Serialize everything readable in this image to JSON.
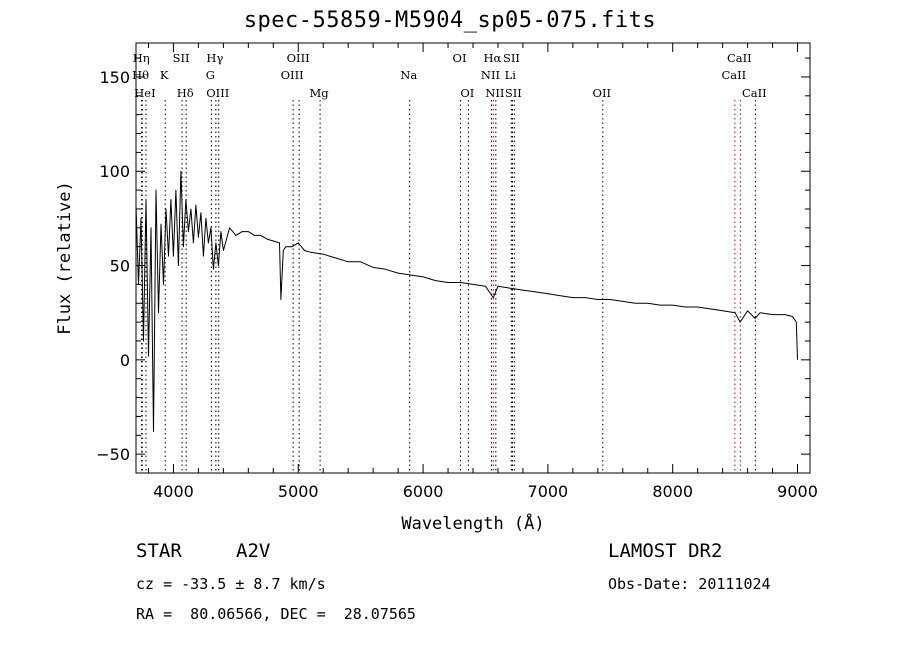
{
  "chart_data": {
    "type": "line",
    "title": "spec-55859-M5904_sp05-075.fits",
    "xlabel": "Wavelength (Å)",
    "ylabel": "Flux (relative)",
    "xlim": [
      3700,
      9100
    ],
    "ylim": [
      -60,
      168
    ],
    "x_ticks": [
      4000,
      5000,
      6000,
      7000,
      8000,
      9000
    ],
    "y_ticks": [
      -50,
      0,
      50,
      100,
      150
    ],
    "grid": false,
    "series": [
      {
        "color": "#000000",
        "x": [
          3700,
          3720,
          3740,
          3760,
          3780,
          3800,
          3820,
          3840,
          3860,
          3880,
          3900,
          3920,
          3940,
          3960,
          3980,
          4000,
          4020,
          4040,
          4060,
          4080,
          4100,
          4120,
          4140,
          4160,
          4180,
          4200,
          4220,
          4240,
          4260,
          4280,
          4300,
          4320,
          4340,
          4360,
          4380,
          4400,
          4450,
          4500,
          4550,
          4600,
          4650,
          4700,
          4750,
          4800,
          4850,
          4861,
          4880,
          4900,
          4950,
          5000,
          5050,
          5100,
          5200,
          5300,
          5400,
          5500,
          5600,
          5700,
          5800,
          5900,
          6000,
          6100,
          6200,
          6300,
          6400,
          6500,
          6563,
          6600,
          6700,
          6800,
          6900,
          7000,
          7100,
          7200,
          7300,
          7400,
          7500,
          7600,
          7700,
          7800,
          7900,
          8000,
          8100,
          8200,
          8300,
          8400,
          8500,
          8540,
          8600,
          8660,
          8700,
          8800,
          8900,
          8960,
          8990,
          9000
        ],
        "y": [
          82,
          40,
          75,
          10,
          85,
          2,
          70,
          -38,
          90,
          25,
          72,
          40,
          80,
          55,
          85,
          55,
          90,
          50,
          100,
          60,
          85,
          68,
          80,
          62,
          82,
          65,
          78,
          55,
          75,
          62,
          70,
          48,
          62,
          50,
          68,
          58,
          70,
          66,
          68,
          68,
          66,
          66,
          64,
          63,
          62,
          32,
          58,
          60,
          60,
          62,
          58,
          57,
          56,
          54,
          52,
          52,
          49,
          48,
          46,
          45,
          44,
          42,
          41,
          41,
          40,
          39,
          33,
          39,
          38,
          37,
          36,
          35,
          34,
          33,
          33,
          32,
          32,
          31,
          30,
          30,
          29,
          29,
          28,
          28,
          27,
          26,
          25,
          20,
          26,
          22,
          25,
          24,
          24,
          23,
          20,
          0
        ]
      }
    ],
    "line_markers": [
      {
        "x": 3750,
        "label": "Hη",
        "row": 1,
        "color": "#000000"
      },
      {
        "x": 3745,
        "label": "Hθ",
        "row": 2,
        "color": "#000000"
      },
      {
        "x": 3780,
        "label": "HeI",
        "row": 3,
        "color": "#000000"
      },
      {
        "x": 3934,
        "label": "K",
        "row": 2,
        "color": "#000000"
      },
      {
        "x": 4069,
        "label": "SII",
        "row": 1,
        "color": "#000000"
      },
      {
        "x": 4102,
        "label": "Hδ",
        "row": 3,
        "color": "#000000"
      },
      {
        "x": 4340,
        "label": "Hγ",
        "row": 1,
        "color": "#000000"
      },
      {
        "x": 4304,
        "label": "G",
        "row": 2,
        "color": "#000000"
      },
      {
        "x": 4363,
        "label": "OIII",
        "row": 3,
        "color": "#000000"
      },
      {
        "x": 4959,
        "label": "OIII",
        "row": 2,
        "color": "#000000"
      },
      {
        "x": 5007,
        "label": "OIII",
        "row": 1,
        "color": "#000000"
      },
      {
        "x": 5175,
        "label": "Mg",
        "row": 3,
        "color": "#000000"
      },
      {
        "x": 5893,
        "label": "Na",
        "row": 2,
        "color": "#000000"
      },
      {
        "x": 6300,
        "label": "OI",
        "row": 1,
        "color": "#000000"
      },
      {
        "x": 6363,
        "label": "OI",
        "row": 3,
        "color": "#000000"
      },
      {
        "x": 6563,
        "label": "Hα",
        "row": 1,
        "color": "#cc0000"
      },
      {
        "x": 6548,
        "label": "NII",
        "row": 2,
        "color": "#000000"
      },
      {
        "x": 6583,
        "label": "NII",
        "row": 3,
        "color": "#000000"
      },
      {
        "x": 6707,
        "label": "Li",
        "row": 2,
        "color": "#000000"
      },
      {
        "x": 6716,
        "label": "SII",
        "row": 1,
        "color": "#000000"
      },
      {
        "x": 6731,
        "label": "SII",
        "row": 3,
        "color": "#000000"
      },
      {
        "x": 7440,
        "label": "OII",
        "row": 3,
        "color": "#000000"
      },
      {
        "x": 8498,
        "label": "CaII",
        "row": 2,
        "color": "#cc0000"
      },
      {
        "x": 8542,
        "label": "CaII",
        "row": 1,
        "color": "#cc0000"
      },
      {
        "x": 8662,
        "label": "CaII",
        "row": 3,
        "color": "#000000"
      }
    ]
  },
  "info": {
    "object_class": "STAR",
    "subclass": "A2V",
    "survey": "LAMOST DR2",
    "redshift": "cz = -33.5 ± 8.7 km/s",
    "obs_date": "Obs-Date: 20111024",
    "coords": "RA =  80.06566, DEC =  28.07565"
  }
}
